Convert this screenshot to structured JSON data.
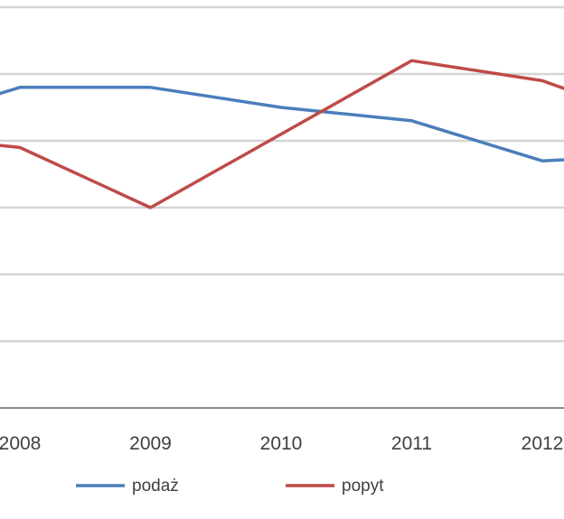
{
  "chart_data": {
    "type": "line",
    "x": [
      "2008",
      "2009",
      "2010",
      "2011",
      "2012"
    ],
    "series": [
      {
        "name": "podaż",
        "color": "#4a7ebb",
        "values": [
          4.8,
          4.8,
          4.5,
          4.3,
          3.7
        ]
      },
      {
        "name": "popyt",
        "color": "#be4b48",
        "values": [
          3.9,
          3.0,
          4.1,
          5.2,
          4.9
        ]
      }
    ],
    "x_outside_left": {
      "x": "2007",
      "podaż": 4.2,
      "popyt": 4.1
    },
    "x_outside_right": {
      "x": "2013",
      "podaż": 3.8,
      "popyt": 4.2
    },
    "ylim": [
      0,
      6.0
    ],
    "grid": true,
    "legend_position": "bottom"
  }
}
